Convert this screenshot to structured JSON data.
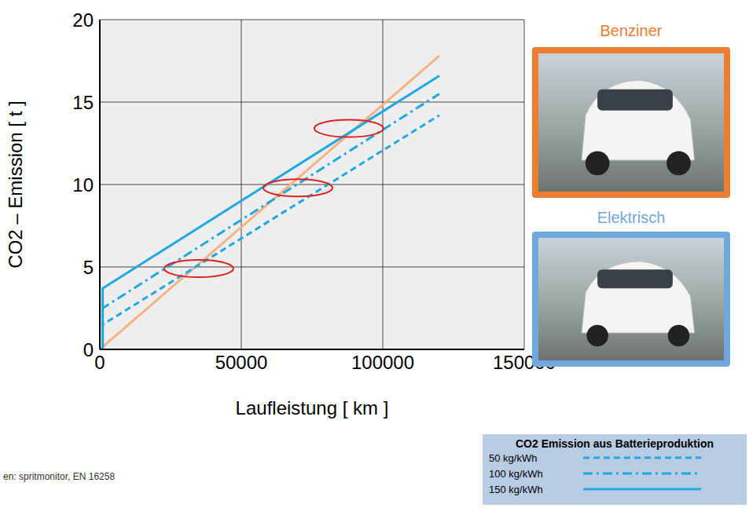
{
  "chart_data": {
    "type": "line",
    "y_label": "CO2 – Emission  [ t ]",
    "x_label": "Laufleistung [ km ]",
    "xlim": [
      0,
      150000
    ],
    "xticks": [
      0,
      50000,
      100000,
      150000
    ],
    "ylim": [
      0,
      20
    ],
    "yticks": [
      0,
      5,
      10,
      15,
      20
    ],
    "grid": true,
    "legend": "lower right",
    "legend_title": "CO2 Emission aus Batterieproduktion",
    "electric_label": "Elektrisch",
    "source": "en: spritmonitor, EN 16258",
    "series": [
      {
        "name": "Benziner",
        "color": "#f4b183",
        "line_style": "solid",
        "x": [
          0,
          120000
        ],
        "values": [
          0,
          17.8
        ]
      },
      {
        "name": "50 kg/kWh",
        "color": "#1ea7e1",
        "line_style": "dashed",
        "x": [
          1000,
          1000,
          120000
        ],
        "values": [
          0,
          1.5,
          14.2
        ]
      },
      {
        "name": "100 kg/kWh",
        "color": "#1ea7e1",
        "line_style": "dashdot",
        "x": [
          1000,
          1000,
          120000
        ],
        "values": [
          0,
          2.5,
          15.5
        ]
      },
      {
        "name": "150 kg/kWh",
        "color": "#1ea7e1",
        "line_style": "solid",
        "x": [
          1000,
          1000,
          120000
        ],
        "values": [
          0,
          3.7,
          16.6
        ]
      }
    ],
    "highlights": [
      {
        "x": 35000,
        "y": 4.9
      },
      {
        "x": 70000,
        "y": 9.8
      },
      {
        "x": 88000,
        "y": 13.4
      }
    ]
  }
}
